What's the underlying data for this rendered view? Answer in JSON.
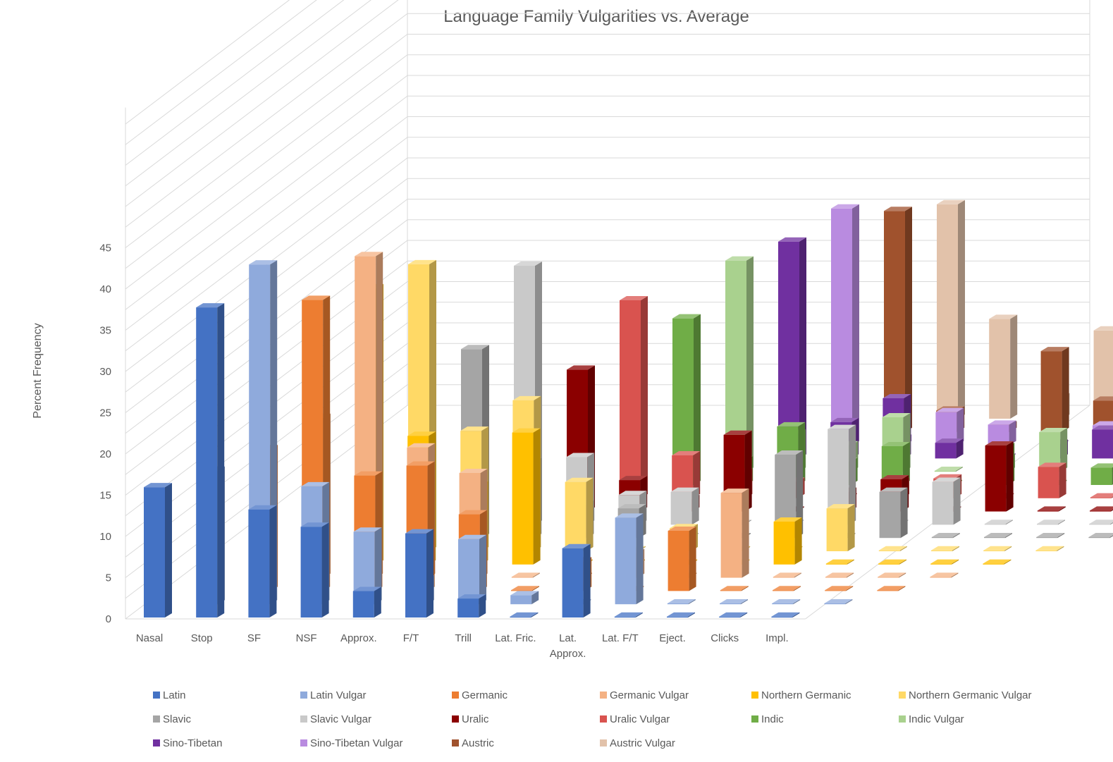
{
  "chart_data": {
    "type": "bar",
    "subtype": "3d-column",
    "title": "Language Family Vulgarities vs. Average",
    "xlabel": "",
    "ylabel": "Percent Frequency",
    "ylim": [
      0,
      45
    ],
    "yticks": [
      0,
      5,
      10,
      15,
      20,
      25,
      30,
      35,
      40,
      45
    ],
    "grid": true,
    "legend_position": "bottom",
    "categories": [
      "Nasal",
      "Stop",
      "SF",
      "NSF",
      "Approx.",
      "F/T",
      "Trill",
      "Lat. Fric.",
      "Lat. Approx.",
      "Lat. F/T",
      "Eject.",
      "Clicks",
      "Impl."
    ],
    "series": [
      {
        "name": "Latin",
        "color": "#4472C4",
        "values": [
          15.8,
          37.6,
          13.1,
          11.0,
          3.2,
          10.2,
          2.3,
          0,
          8.4,
          0,
          0,
          0,
          0
        ]
      },
      {
        "name": "Latin Vulgar",
        "color": "#8FAADC",
        "values": [
          16.2,
          41.2,
          14.3,
          8.8,
          3.0,
          7.9,
          1.1,
          0,
          10.5,
          0,
          0,
          0,
          0
        ]
      },
      {
        "name": "Germanic",
        "color": "#ED7D31",
        "values": [
          17.2,
          35.3,
          14.0,
          15.2,
          9.3,
          0,
          3.6,
          0,
          7.3,
          0,
          0,
          0,
          0
        ]
      },
      {
        "name": "Germanic Vulgar",
        "color": "#F4B183",
        "values": [
          19.4,
          39.0,
          15.8,
          12.7,
          0,
          0,
          3.0,
          0,
          10.3,
          0,
          0,
          0,
          0
        ]
      },
      {
        "name": "Northern Germanic",
        "color": "#FFC000",
        "values": [
          33.5,
          15.6,
          9.6,
          16.0,
          0,
          0,
          0,
          0,
          5.2,
          0,
          0,
          0,
          0
        ]
      },
      {
        "name": "Northern Germanic Vulgar",
        "color": "#FFD966",
        "values": [
          34.8,
          14.6,
          18.3,
          8.4,
          0,
          2.8,
          0,
          0,
          5.2,
          0,
          0,
          0,
          0
        ]
      },
      {
        "name": "Slavic",
        "color": "#A5A5A5",
        "values": [
          22.9,
          9.2,
          4.1,
          3.6,
          0,
          0,
          10.1,
          0,
          5.6,
          0,
          0,
          0,
          0
        ]
      },
      {
        "name": "Slavic Vulgar",
        "color": "#C9C9C9",
        "values": [
          31.4,
          8.2,
          3.6,
          4.0,
          0,
          0,
          11.6,
          0,
          5.2,
          0,
          0,
          0,
          0
        ]
      },
      {
        "name": "Uralic",
        "color": "#8B0000",
        "values": [
          17.2,
          3.8,
          1.5,
          9.3,
          0,
          2.4,
          3.9,
          0,
          8.0,
          0,
          0,
          0,
          0
        ]
      },
      {
        "name": "Uralic Vulgar",
        "color": "#D9534F",
        "values": [
          24.0,
          5.2,
          3.1,
          2.0,
          0,
          2.0,
          2.4,
          0,
          3.8,
          0,
          0,
          0,
          0
        ]
      },
      {
        "name": "Indic",
        "color": "#70AD47",
        "values": [
          20.2,
          3.0,
          7.1,
          2.8,
          4.7,
          0,
          4.6,
          0,
          2.1,
          0,
          0,
          0,
          0
        ]
      },
      {
        "name": "Indic Vulgar",
        "color": "#A9D18E",
        "values": [
          25.6,
          4.6,
          3.2,
          6.6,
          0,
          1.6,
          4.8,
          0,
          0,
          0,
          0,
          0,
          0
        ]
      },
      {
        "name": "Sino-Tibetan",
        "color": "#7030A0",
        "values": [
          26.3,
          4.4,
          7.3,
          1.9,
          0,
          1.8,
          3.5,
          0,
          3.7,
          0,
          0,
          0,
          0
        ]
      },
      {
        "name": "Sino-Tibetan Vulgar",
        "color": "#B98BE0",
        "values": [
          28.7,
          0.8,
          4.0,
          2.5,
          0,
          2.4,
          4.3,
          0,
          0,
          0,
          0,
          0,
          0
        ]
      },
      {
        "name": "Austric",
        "color": "#A0522D",
        "values": [
          26.8,
          2.6,
          0.8,
          9.8,
          3.8,
          0,
          1.8,
          0,
          0,
          0,
          0,
          0,
          0
        ]
      },
      {
        "name": "Austric Vulgar",
        "color": "#E2C2AA",
        "values": [
          26.0,
          12.1,
          2.6,
          10.7,
          6.1,
          0,
          4.7,
          0,
          0,
          0,
          0,
          0,
          0
        ]
      }
    ]
  }
}
